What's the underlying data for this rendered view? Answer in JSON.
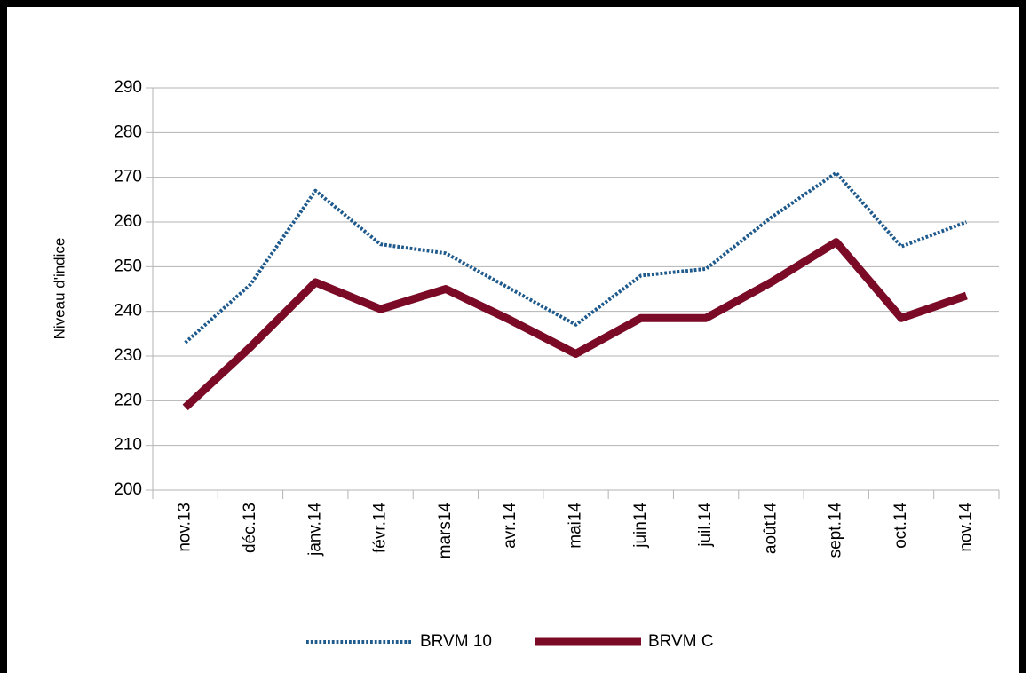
{
  "chart_data": {
    "type": "line",
    "y_axis_label": "Niveau d'indice",
    "categories": [
      "nov.13",
      "déc.13",
      "janv.14",
      "févr.14",
      "mars14",
      "avr.14",
      "mai14",
      "juin14",
      "juil.14",
      "août14",
      "sept.14",
      "oct.14",
      "nov.14"
    ],
    "series": [
      {
        "name": "BRVM 10",
        "color": "#1f5a8c",
        "line_style": "dotted",
        "line_width": 4,
        "values": [
          233,
          246,
          267,
          255,
          253,
          245,
          237,
          248,
          249.5,
          261,
          271,
          254.5,
          260
        ]
      },
      {
        "name": "BRVM C",
        "color": "#7b0a26",
        "line_style": "solid",
        "line_width": 9,
        "values": [
          218.5,
          232,
          246.5,
          240.5,
          245,
          238,
          230.5,
          238.5,
          238.5,
          246.5,
          255.5,
          238.5,
          243.5
        ]
      }
    ],
    "ylim": [
      200,
      290
    ],
    "yticks": [
      200,
      210,
      220,
      230,
      240,
      250,
      260,
      270,
      280,
      290
    ],
    "grid": true,
    "legend": "bottom"
  }
}
